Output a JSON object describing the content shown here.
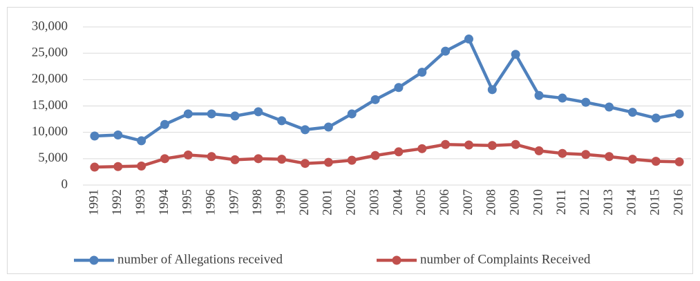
{
  "chart_data": {
    "type": "line",
    "categories": [
      "1991",
      "1992",
      "1993",
      "1994",
      "1995",
      "1996",
      "1997",
      "1998",
      "1999",
      "2000",
      "2001",
      "2002",
      "2003",
      "2004",
      "2005",
      "2006",
      "2007",
      "2008",
      "2009",
      "2010",
      "2011",
      "2012",
      "2013",
      "2014",
      "2015",
      "2016"
    ],
    "series": [
      {
        "name": "number of Allegations received",
        "color": "#4f81bd",
        "values": [
          9300,
          9500,
          8400,
          11500,
          13500,
          13500,
          13100,
          13900,
          12200,
          10500,
          11000,
          13500,
          16200,
          18500,
          21400,
          25400,
          27700,
          18100,
          24800,
          17000,
          16500,
          15700,
          14800,
          13800,
          12700,
          13500
        ]
      },
      {
        "name": "number of Complaints Received",
        "color": "#c0504d",
        "values": [
          3400,
          3500,
          3600,
          5000,
          5700,
          5400,
          4800,
          5000,
          4900,
          4100,
          4300,
          4700,
          5600,
          6300,
          6900,
          7700,
          7600,
          7500,
          7700,
          6500,
          6000,
          5800,
          5400,
          4900,
          4500,
          4400
        ]
      }
    ],
    "ylim": [
      0,
      30000
    ],
    "yticks": [
      0,
      {
        "value": 5000,
        "label": "5,000"
      },
      {
        "value": 10000,
        "label": "10,000"
      },
      {
        "value": 15000,
        "label": "15,000"
      },
      {
        "value": 20000,
        "label": "20,000"
      },
      {
        "value": 25000,
        "label": "25,000"
      },
      {
        "value": 30000,
        "label": "30,000"
      }
    ],
    "grid": true,
    "legend": "bottom"
  }
}
